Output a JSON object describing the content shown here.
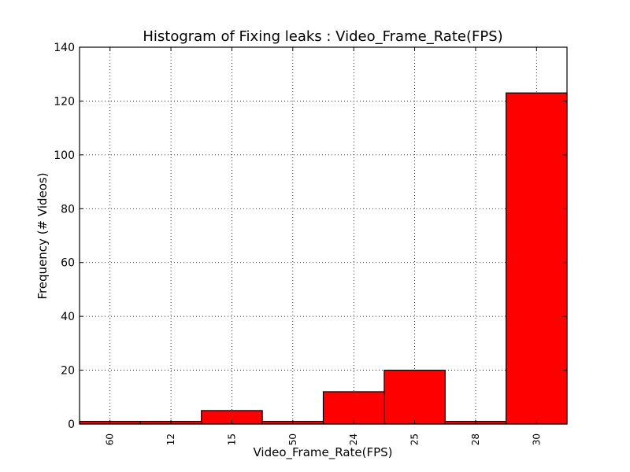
{
  "chart_data": {
    "type": "bar",
    "title": "Histogram of Fixing leaks : Video_Frame_Rate(FPS)",
    "xlabel": "Video_Frame_Rate(FPS)",
    "ylabel": "Frequency (# Videos)",
    "categories": [
      "60",
      "12",
      "15",
      "50",
      "24",
      "25",
      "28",
      "30"
    ],
    "values": [
      1,
      1,
      5,
      1,
      12,
      20,
      1,
      123
    ],
    "ylim": [
      0,
      140
    ],
    "yticks": [
      "0",
      "20",
      "40",
      "60",
      "80",
      "100",
      "120",
      "140"
    ],
    "grid": true,
    "bar_color": "#ff0000"
  }
}
